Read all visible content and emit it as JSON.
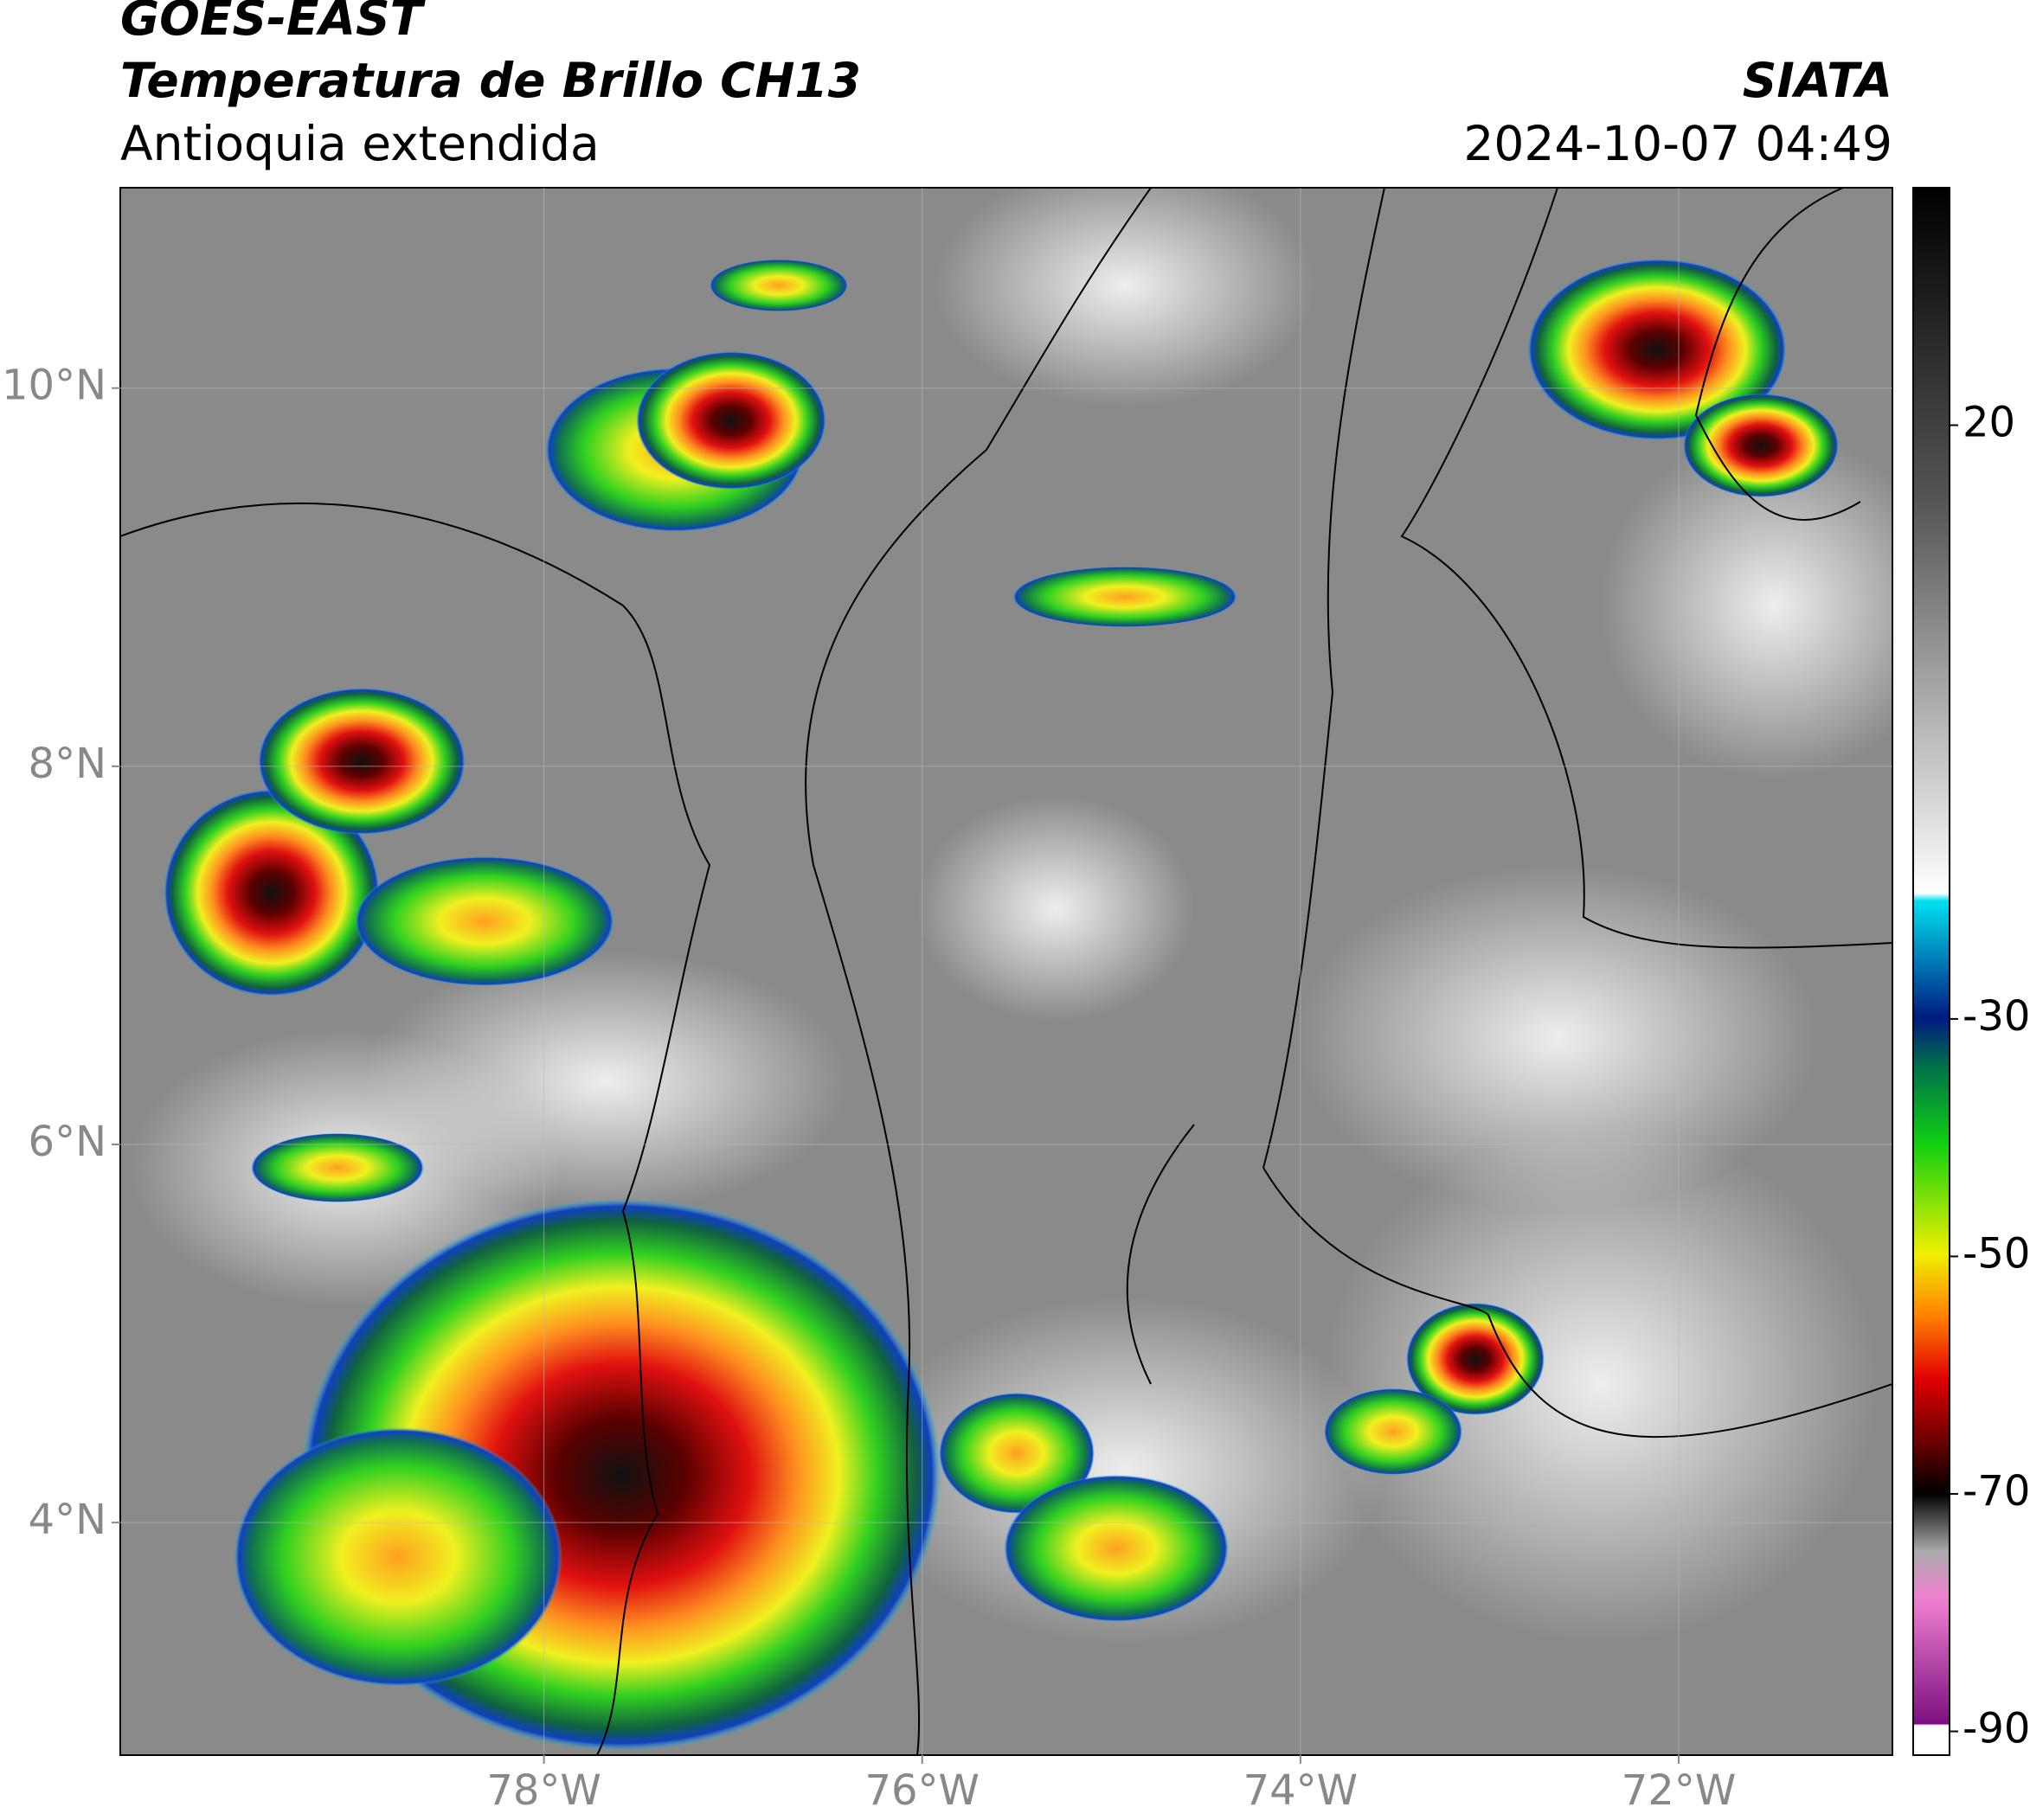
{
  "header": {
    "satellite": "GOES-EAST",
    "product": "Temperatura de Brillo CH13",
    "region": "Antioquia extendida",
    "organization": "SIATA",
    "datetime": "2024-10-07 04:49"
  },
  "map": {
    "xlim": [
      -80.24,
      -70.87
    ],
    "ylim": [
      2.77,
      11.06
    ],
    "xticks": [
      {
        "value": -78,
        "label": "78°W"
      },
      {
        "value": -76,
        "label": "76°W"
      },
      {
        "value": -74,
        "label": "74°W"
      },
      {
        "value": -72,
        "label": "72°W"
      }
    ],
    "yticks": [
      {
        "value": 4,
        "label": "4°N"
      },
      {
        "value": 6,
        "label": "6°N"
      },
      {
        "value": 8,
        "label": "8°N"
      },
      {
        "value": 10,
        "label": "10°N"
      }
    ]
  },
  "colorbar": {
    "lim": [
      -92,
      40
    ],
    "ticks": [
      20,
      -30,
      -50,
      -70,
      -90
    ]
  }
}
